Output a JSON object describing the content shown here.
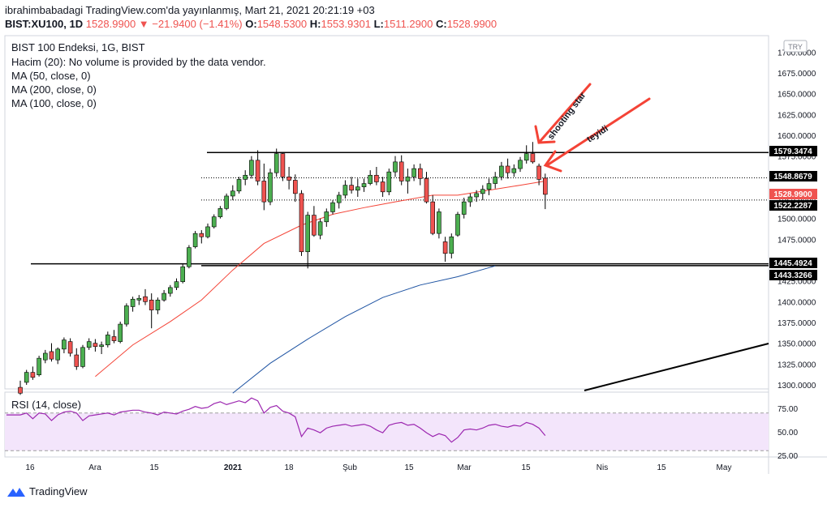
{
  "header": {
    "publish_line": "ibrahimbabadagi TradingView.com'da yayınlanmış, Mart 21, 2021 20:21:19 +03",
    "symbol": "BIST:XU100, 1D",
    "last": "1528.9900",
    "change": "−21.9400 (−1.41%)",
    "o_label": "O:",
    "o_value": "1548.5300",
    "h_label": "H:",
    "h_value": "1553.9301",
    "l_label": "L:",
    "l_value": "1511.2900",
    "c_label": "C:",
    "c_value": "1528.9900"
  },
  "legend": {
    "title": "BIST 100 Endeksi, 1G, BIST",
    "volume": "Hacim (20): No volume is provided by the data vendor.",
    "ma50": "MA (50, close, 0)",
    "ma200": "MA (200, close, 0)",
    "ma100": "MA (100, close, 0)"
  },
  "currency_badge": "TRY",
  "rsi": {
    "title": "RSI (14, close)",
    "ticks": [
      "75.00",
      "50.00",
      "25.00"
    ],
    "range": [
      25,
      90
    ]
  },
  "annotations": {
    "shooting_star": "shooting star",
    "confirm": "teyidi"
  },
  "footer": {
    "brand": "TradingView"
  },
  "colors": {
    "up": "#26a69a",
    "down": "#ef5350",
    "candle_up": "#4caf50",
    "ma_red": "#f44336",
    "ma_blue": "#1e53a2",
    "rsi_line": "#9c27b0",
    "rsi_band": "#f3e5fb",
    "annotation": "#f44336"
  },
  "chart_data": {
    "type": "candlestick",
    "title": "BIST 100 Endeksi, 1G, BIST",
    "y_range": [
      1290,
      1720
    ],
    "y_ticks": [
      "1700.0000",
      "1675.0000",
      "1650.0000",
      "1625.0000",
      "1600.0000",
      "1575.0000",
      "1550.0000",
      "1525.0000",
      "1500.0000",
      "1475.0000",
      "1450.0000",
      "1425.0000",
      "1400.0000",
      "1375.0000",
      "1350.0000",
      "1325.0000",
      "1300.0000"
    ],
    "x_ticks": [
      "16",
      "Ara",
      "15",
      "2021",
      "18",
      "Şub",
      "15",
      "Mar",
      "15",
      "Nis",
      "15",
      "May"
    ],
    "price_labels": [
      {
        "text": "1579.3474",
        "value": 1579.3474,
        "style": "line"
      },
      {
        "text": "1548.8679",
        "value": 1548.8679,
        "style": "line"
      },
      {
        "text": "1528.9900",
        "value": 1528.99,
        "style": "last"
      },
      {
        "text": "1522.2287",
        "value": 1522.2287,
        "style": "line"
      },
      {
        "text": "1445.4924",
        "value": 1445.4924,
        "style": "line"
      },
      {
        "text": "1443.3266",
        "value": 1443.3266,
        "style": "line"
      }
    ],
    "horizontal_lines": [
      {
        "value": 1579.3474,
        "style": "solid"
      },
      {
        "value": 1548.8679,
        "style": "dotted"
      },
      {
        "value": 1522.2287,
        "style": "dotted"
      },
      {
        "value": 1445.4924,
        "style": "solid"
      },
      {
        "value": 1443.3266,
        "style": "solid"
      }
    ],
    "candles": [
      [
        1297,
        1305,
        1288,
        1290
      ],
      [
        1303,
        1318,
        1300,
        1315
      ],
      [
        1315,
        1322,
        1306,
        1309
      ],
      [
        1312,
        1335,
        1310,
        1332
      ],
      [
        1330,
        1342,
        1326,
        1338
      ],
      [
        1340,
        1350,
        1328,
        1331
      ],
      [
        1330,
        1345,
        1325,
        1343
      ],
      [
        1343,
        1357,
        1338,
        1354
      ],
      [
        1352,
        1356,
        1334,
        1338
      ],
      [
        1336,
        1344,
        1318,
        1322
      ],
      [
        1322,
        1348,
        1320,
        1345
      ],
      [
        1345,
        1356,
        1342,
        1352
      ],
      [
        1350,
        1355,
        1340,
        1346
      ],
      [
        1346,
        1352,
        1337,
        1348
      ],
      [
        1348,
        1364,
        1345,
        1360
      ],
      [
        1358,
        1366,
        1350,
        1353
      ],
      [
        1352,
        1376,
        1350,
        1373
      ],
      [
        1373,
        1398,
        1370,
        1395
      ],
      [
        1394,
        1406,
        1388,
        1403
      ],
      [
        1402,
        1408,
        1396,
        1404
      ],
      [
        1406,
        1415,
        1396,
        1400
      ],
      [
        1402,
        1410,
        1368,
        1390
      ],
      [
        1390,
        1405,
        1385,
        1402
      ],
      [
        1402,
        1414,
        1400,
        1410
      ],
      [
        1410,
        1420,
        1406,
        1417
      ],
      [
        1417,
        1428,
        1414,
        1424
      ],
      [
        1424,
        1445,
        1422,
        1442
      ],
      [
        1442,
        1468,
        1440,
        1465
      ],
      [
        1466,
        1485,
        1464,
        1482
      ],
      [
        1482,
        1486,
        1470,
        1478
      ],
      [
        1478,
        1494,
        1476,
        1490
      ],
      [
        1490,
        1505,
        1488,
        1502
      ],
      [
        1502,
        1515,
        1500,
        1512
      ],
      [
        1512,
        1530,
        1510,
        1527
      ],
      [
        1527,
        1540,
        1522,
        1533
      ],
      [
        1533,
        1550,
        1530,
        1547
      ],
      [
        1547,
        1558,
        1540,
        1552
      ],
      [
        1552,
        1575,
        1548,
        1570
      ],
      [
        1570,
        1582,
        1540,
        1545
      ],
      [
        1545,
        1566,
        1510,
        1520
      ],
      [
        1520,
        1560,
        1516,
        1555
      ],
      [
        1555,
        1584,
        1550,
        1578
      ],
      [
        1578,
        1580,
        1545,
        1550
      ],
      [
        1550,
        1562,
        1535,
        1546
      ],
      [
        1546,
        1553,
        1520,
        1530
      ],
      [
        1530,
        1534,
        1455,
        1460
      ],
      [
        1460,
        1508,
        1440,
        1504
      ],
      [
        1504,
        1515,
        1478,
        1480
      ],
      [
        1480,
        1500,
        1475,
        1496
      ],
      [
        1496,
        1512,
        1490,
        1508
      ],
      [
        1508,
        1522,
        1505,
        1519
      ],
      [
        1519,
        1532,
        1512,
        1528
      ],
      [
        1528,
        1546,
        1524,
        1540
      ],
      [
        1540,
        1550,
        1530,
        1534
      ],
      [
        1534,
        1548,
        1526,
        1538
      ],
      [
        1538,
        1548,
        1532,
        1542
      ],
      [
        1542,
        1558,
        1540,
        1552
      ],
      [
        1552,
        1562,
        1540,
        1544
      ],
      [
        1544,
        1550,
        1526,
        1532
      ],
      [
        1532,
        1560,
        1528,
        1556
      ],
      [
        1556,
        1575,
        1550,
        1568
      ],
      [
        1568,
        1576,
        1540,
        1545
      ],
      [
        1545,
        1560,
        1530,
        1550
      ],
      [
        1550,
        1565,
        1545,
        1560
      ],
      [
        1560,
        1566,
        1540,
        1548
      ],
      [
        1548,
        1556,
        1518,
        1520
      ],
      [
        1520,
        1528,
        1480,
        1482
      ],
      [
        1482,
        1512,
        1476,
        1508
      ],
      [
        1472,
        1478,
        1448,
        1458
      ],
      [
        1458,
        1482,
        1452,
        1478
      ],
      [
        1480,
        1508,
        1478,
        1505
      ],
      [
        1505,
        1525,
        1500,
        1520
      ],
      [
        1520,
        1530,
        1514,
        1526
      ],
      [
        1526,
        1534,
        1520,
        1530
      ],
      [
        1530,
        1540,
        1522,
        1535
      ],
      [
        1535,
        1548,
        1528,
        1542
      ],
      [
        1542,
        1556,
        1536,
        1550
      ],
      [
        1550,
        1568,
        1546,
        1563
      ],
      [
        1563,
        1572,
        1548,
        1555
      ],
      [
        1555,
        1565,
        1550,
        1560
      ],
      [
        1560,
        1574,
        1556,
        1570
      ],
      [
        1570,
        1588,
        1566,
        1578
      ],
      [
        1578,
        1592,
        1566,
        1568
      ],
      [
        1563,
        1566,
        1540,
        1547
      ],
      [
        1548.53,
        1553.93,
        1511.29,
        1528.99
      ]
    ],
    "ma50": [
      [
        12,
        1310
      ],
      [
        18,
        1348
      ],
      [
        24,
        1376
      ],
      [
        29,
        1402
      ],
      [
        34,
        1438
      ],
      [
        39,
        1470
      ],
      [
        45,
        1492
      ],
      [
        50,
        1505
      ],
      [
        55,
        1513
      ],
      [
        60,
        1520
      ],
      [
        66,
        1528
      ],
      [
        70,
        1528
      ],
      [
        75,
        1534
      ],
      [
        80,
        1540
      ],
      [
        84,
        1545
      ]
    ],
    "ma100_start": [
      [
        34,
        1290
      ],
      [
        40,
        1326
      ],
      [
        46,
        1355
      ],
      [
        52,
        1382
      ],
      [
        58,
        1405
      ],
      [
        64,
        1420
      ],
      [
        70,
        1430
      ],
      [
        76,
        1443
      ]
    ],
    "rsi_values": [
      68,
      70,
      64,
      70,
      69,
      62,
      68,
      71,
      72,
      70,
      62,
      67,
      68,
      69,
      70,
      68,
      71,
      72,
      73,
      73,
      71,
      70,
      68,
      71,
      70,
      69,
      72,
      74,
      77,
      75,
      76,
      80,
      82,
      79,
      81,
      83,
      81,
      86,
      83,
      70,
      76,
      78,
      72,
      70,
      66,
      45,
      54,
      52,
      49,
      54,
      56,
      57,
      58,
      56,
      57,
      58,
      56,
      52,
      49,
      57,
      59,
      60,
      57,
      58,
      54,
      49,
      45,
      48,
      46,
      39,
      44,
      52,
      53,
      52,
      54,
      57,
      58,
      56,
      55,
      57,
      56,
      60,
      58,
      54,
      46
    ],
    "trend_line": {
      "from": [
        935,
        1290
      ],
      "to": [
        1019,
        1350
      ]
    }
  }
}
